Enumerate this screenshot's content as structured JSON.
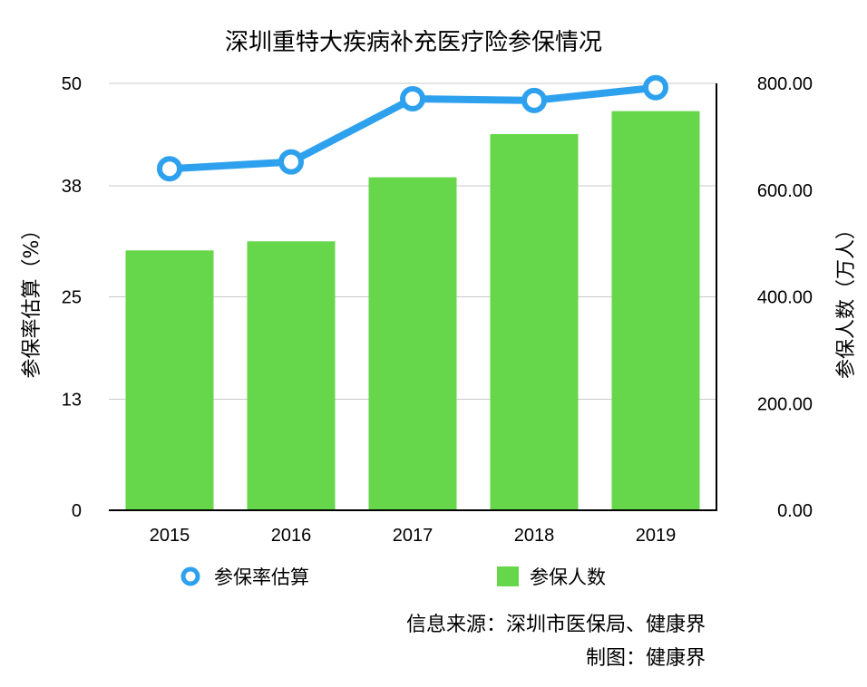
{
  "chart_data": {
    "type": "bar",
    "title": "深圳重特大疾病补充医疗险参保情况",
    "categories": [
      "2015",
      "2016",
      "2017",
      "2018",
      "2019"
    ],
    "series": [
      {
        "name": "参保人数",
        "type": "bar",
        "axis": "right",
        "color": "#66d64a",
        "values": [
          487,
          504,
          624,
          705,
          748
        ]
      },
      {
        "name": "参保率估算",
        "type": "line",
        "axis": "left",
        "color": "#2ea1ee",
        "values": [
          40.0,
          40.8,
          48.2,
          48.0,
          49.5
        ]
      }
    ],
    "y_left": {
      "label": "参保率估算（%）",
      "range": [
        0,
        50
      ],
      "ticks": [
        0,
        13,
        25,
        38,
        50
      ],
      "tick_labels": [
        "0",
        "13",
        "25",
        "38",
        "50"
      ]
    },
    "y_right": {
      "label": "参保人数（万人）",
      "range": [
        0,
        800
      ],
      "ticks": [
        0,
        200,
        400,
        600,
        800
      ],
      "tick_labels": [
        "0.00",
        "200.00",
        "400.00",
        "600.00",
        "800.00"
      ]
    },
    "grid": true,
    "legend": {
      "position": "bottom",
      "items": [
        {
          "label": "参保率估算",
          "marker": "line-circle"
        },
        {
          "label": "参保人数",
          "marker": "square"
        }
      ]
    },
    "annotations": [
      "信息来源：深圳市医保局、健康界",
      "制图：健康界"
    ]
  }
}
